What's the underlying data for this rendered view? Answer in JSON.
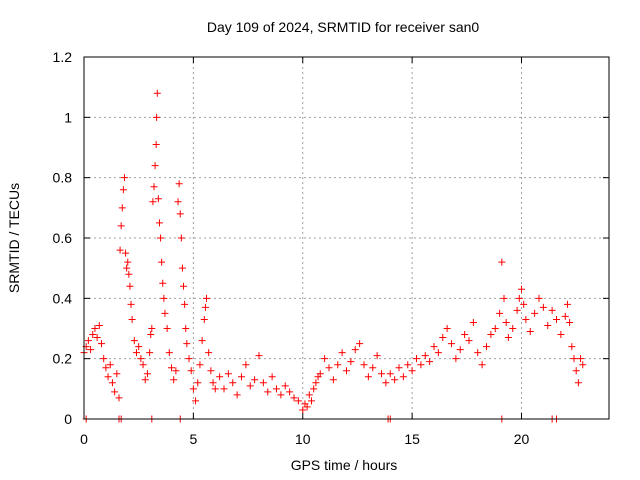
{
  "chart_data": {
    "type": "scatter",
    "title": "Day 109 of 2024, SRMTID for receiver san0",
    "xlabel": "GPS time / hours",
    "ylabel": "SRMTID / TECUs",
    "xlim": [
      0,
      24
    ],
    "ylim": [
      0,
      1.2
    ],
    "xticks": [
      0,
      5,
      10,
      15,
      20
    ],
    "xtick_labels": [
      "0",
      "5",
      "10",
      "15",
      "20"
    ],
    "yticks": [
      0,
      0.2,
      0.4,
      0.6,
      0.8,
      1.0,
      1.2
    ],
    "ytick_labels": [
      "0",
      "0.2",
      "0.4",
      "0.6",
      "0.8",
      "1",
      "1.2"
    ],
    "grid": true,
    "marker": "+",
    "series": [
      {
        "name": "SRMTID",
        "color": "#ff0000",
        "points": [
          [
            0.0,
            0.22
          ],
          [
            0.1,
            0.24
          ],
          [
            0.2,
            0.26
          ],
          [
            0.3,
            0.23
          ],
          [
            0.4,
            0.28
          ],
          [
            0.5,
            0.3
          ],
          [
            0.6,
            0.27
          ],
          [
            0.7,
            0.31
          ],
          [
            0.8,
            0.25
          ],
          [
            0.9,
            0.2
          ],
          [
            1.0,
            0.17
          ],
          [
            1.1,
            0.14
          ],
          [
            1.2,
            0.18
          ],
          [
            1.3,
            0.12
          ],
          [
            1.4,
            0.09
          ],
          [
            1.5,
            0.15
          ],
          [
            1.6,
            0.07
          ],
          [
            1.65,
            0.56
          ],
          [
            1.7,
            0.64
          ],
          [
            1.75,
            0.7
          ],
          [
            1.8,
            0.76
          ],
          [
            1.85,
            0.8
          ],
          [
            1.9,
            0.55
          ],
          [
            1.95,
            0.5
          ],
          [
            2.0,
            0.52
          ],
          [
            2.05,
            0.48
          ],
          [
            2.1,
            0.44
          ],
          [
            2.15,
            0.38
          ],
          [
            2.2,
            0.33
          ],
          [
            2.3,
            0.26
          ],
          [
            2.4,
            0.22
          ],
          [
            2.5,
            0.24
          ],
          [
            2.6,
            0.2
          ],
          [
            2.7,
            0.18
          ],
          [
            2.8,
            0.13
          ],
          [
            2.9,
            0.15
          ],
          [
            3.0,
            0.22
          ],
          [
            3.05,
            0.28
          ],
          [
            3.1,
            0.3
          ],
          [
            3.15,
            0.72
          ],
          [
            3.2,
            0.77
          ],
          [
            3.25,
            0.84
          ],
          [
            3.3,
            0.91
          ],
          [
            3.32,
            1.0
          ],
          [
            3.35,
            1.08
          ],
          [
            3.4,
            0.73
          ],
          [
            3.45,
            0.65
          ],
          [
            3.5,
            0.6
          ],
          [
            3.55,
            0.52
          ],
          [
            3.6,
            0.45
          ],
          [
            3.65,
            0.4
          ],
          [
            3.7,
            0.35
          ],
          [
            3.8,
            0.3
          ],
          [
            3.9,
            0.22
          ],
          [
            4.0,
            0.17
          ],
          [
            4.1,
            0.13
          ],
          [
            4.2,
            0.16
          ],
          [
            4.3,
            0.72
          ],
          [
            4.35,
            0.78
          ],
          [
            4.4,
            0.68
          ],
          [
            4.45,
            0.6
          ],
          [
            4.5,
            0.5
          ],
          [
            4.55,
            0.44
          ],
          [
            4.6,
            0.38
          ],
          [
            4.65,
            0.3
          ],
          [
            4.7,
            0.25
          ],
          [
            4.8,
            0.2
          ],
          [
            4.9,
            0.16
          ],
          [
            5.0,
            0.1
          ],
          [
            5.1,
            0.06
          ],
          [
            5.2,
            0.12
          ],
          [
            5.3,
            0.18
          ],
          [
            5.4,
            0.26
          ],
          [
            5.5,
            0.33
          ],
          [
            5.55,
            0.37
          ],
          [
            5.6,
            0.4
          ],
          [
            5.7,
            0.22
          ],
          [
            5.8,
            0.16
          ],
          [
            5.9,
            0.12
          ],
          [
            6.0,
            0.1
          ],
          [
            6.2,
            0.14
          ],
          [
            6.4,
            0.1
          ],
          [
            6.6,
            0.15
          ],
          [
            6.8,
            0.12
          ],
          [
            7.0,
            0.08
          ],
          [
            7.2,
            0.14
          ],
          [
            7.4,
            0.18
          ],
          [
            7.6,
            0.11
          ],
          [
            7.8,
            0.13
          ],
          [
            8.0,
            0.21
          ],
          [
            8.2,
            0.12
          ],
          [
            8.4,
            0.09
          ],
          [
            8.6,
            0.14
          ],
          [
            8.8,
            0.1
          ],
          [
            9.0,
            0.08
          ],
          [
            9.2,
            0.11
          ],
          [
            9.4,
            0.09
          ],
          [
            9.6,
            0.07
          ],
          [
            9.8,
            0.06
          ],
          [
            10.0,
            0.03
          ],
          [
            10.1,
            0.05
          ],
          [
            10.2,
            0.04
          ],
          [
            10.3,
            0.08
          ],
          [
            10.4,
            0.06
          ],
          [
            10.5,
            0.1
          ],
          [
            10.6,
            0.12
          ],
          [
            10.7,
            0.14
          ],
          [
            10.8,
            0.15
          ],
          [
            11.0,
            0.2
          ],
          [
            11.2,
            0.17
          ],
          [
            11.4,
            0.13
          ],
          [
            11.6,
            0.18
          ],
          [
            11.8,
            0.22
          ],
          [
            12.0,
            0.16
          ],
          [
            12.2,
            0.19
          ],
          [
            12.4,
            0.23
          ],
          [
            12.6,
            0.25
          ],
          [
            12.8,
            0.18
          ],
          [
            13.0,
            0.14
          ],
          [
            13.2,
            0.17
          ],
          [
            13.4,
            0.21
          ],
          [
            13.6,
            0.15
          ],
          [
            13.8,
            0.12
          ],
          [
            14.0,
            0.15
          ],
          [
            14.2,
            0.13
          ],
          [
            14.4,
            0.17
          ],
          [
            14.6,
            0.14
          ],
          [
            14.8,
            0.18
          ],
          [
            15.0,
            0.16
          ],
          [
            15.2,
            0.2
          ],
          [
            15.4,
            0.18
          ],
          [
            15.6,
            0.21
          ],
          [
            15.8,
            0.19
          ],
          [
            16.0,
            0.24
          ],
          [
            16.2,
            0.22
          ],
          [
            16.4,
            0.27
          ],
          [
            16.6,
            0.3
          ],
          [
            16.8,
            0.25
          ],
          [
            17.0,
            0.2
          ],
          [
            17.2,
            0.23
          ],
          [
            17.4,
            0.28
          ],
          [
            17.6,
            0.26
          ],
          [
            17.8,
            0.32
          ],
          [
            18.0,
            0.22
          ],
          [
            18.2,
            0.18
          ],
          [
            18.4,
            0.24
          ],
          [
            18.6,
            0.28
          ],
          [
            18.8,
            0.3
          ],
          [
            19.0,
            0.35
          ],
          [
            19.1,
            0.52
          ],
          [
            19.2,
            0.4
          ],
          [
            19.3,
            0.32
          ],
          [
            19.4,
            0.27
          ],
          [
            19.6,
            0.3
          ],
          [
            19.8,
            0.36
          ],
          [
            19.9,
            0.4
          ],
          [
            20.0,
            0.43
          ],
          [
            20.1,
            0.38
          ],
          [
            20.2,
            0.33
          ],
          [
            20.4,
            0.29
          ],
          [
            20.6,
            0.35
          ],
          [
            20.8,
            0.4
          ],
          [
            21.0,
            0.37
          ],
          [
            21.2,
            0.31
          ],
          [
            21.4,
            0.36
          ],
          [
            21.6,
            0.33
          ],
          [
            21.8,
            0.28
          ],
          [
            22.0,
            0.34
          ],
          [
            22.1,
            0.38
          ],
          [
            22.2,
            0.32
          ],
          [
            22.3,
            0.24
          ],
          [
            22.4,
            0.2
          ],
          [
            22.5,
            0.16
          ],
          [
            22.6,
            0.12
          ],
          [
            22.7,
            0.2
          ],
          [
            22.8,
            0.18
          ],
          [
            0.1,
            0.0
          ],
          [
            1.6,
            0.0
          ],
          [
            1.7,
            0.0
          ],
          [
            3.1,
            0.0
          ],
          [
            4.4,
            0.0
          ],
          [
            13.9,
            0.0
          ],
          [
            14.0,
            0.0
          ],
          [
            19.1,
            0.0
          ],
          [
            21.4,
            0.0
          ],
          [
            21.6,
            0.0
          ]
        ]
      }
    ]
  }
}
